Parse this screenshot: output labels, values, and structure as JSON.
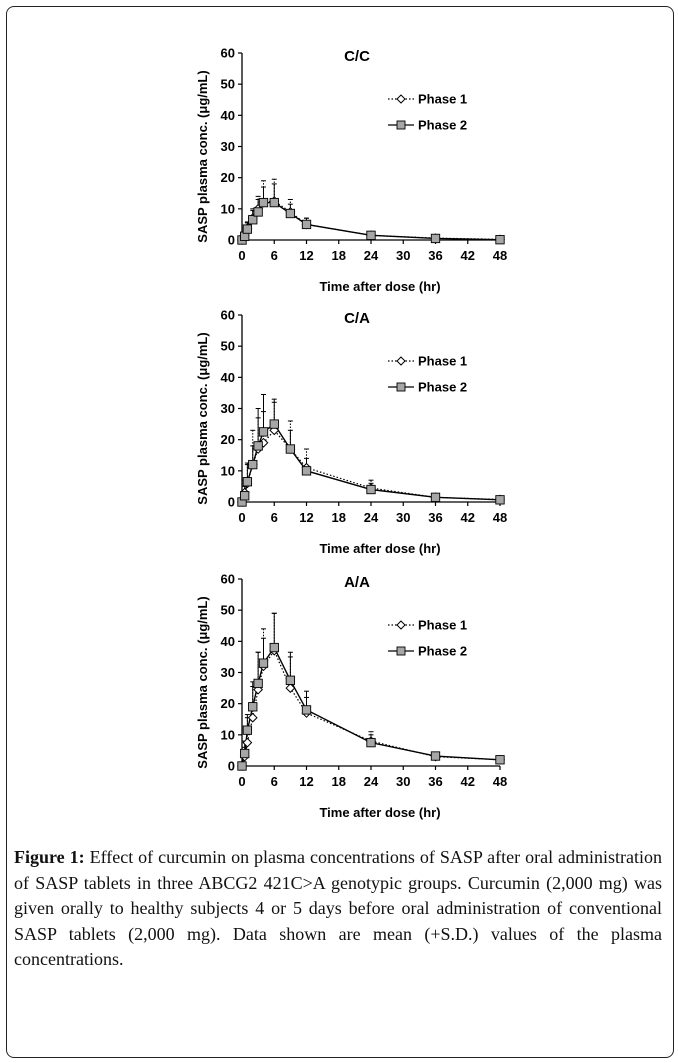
{
  "chart_data": [
    {
      "type": "line",
      "title": "C/C",
      "xlabel": "Time after dose (hr)",
      "ylabel": "SASP plasma conc. (μg/mL)",
      "xlim": [
        0,
        48
      ],
      "ylim": [
        0,
        60
      ],
      "xticks": [
        0,
        6,
        12,
        18,
        24,
        30,
        36,
        42,
        48
      ],
      "yticks": [
        0,
        10,
        20,
        30,
        40,
        50,
        60
      ],
      "legend": "top-right",
      "grid": false,
      "x": [
        0,
        0.5,
        1,
        2,
        3,
        4,
        6,
        9,
        12,
        24,
        36,
        48
      ],
      "series": [
        {
          "name": "Phase 1",
          "marker": "diamond",
          "line": "dotted",
          "values": [
            0,
            1.5,
            3.8,
            7,
            10,
            12,
            12.5,
            9,
            5,
            1.5,
            0.6,
            0.2
          ],
          "sd": [
            0,
            1,
            2,
            3,
            4,
            7,
            7,
            4,
            2,
            0.5,
            0.3,
            0.1
          ]
        },
        {
          "name": "Phase 2",
          "marker": "square",
          "line": "solid",
          "values": [
            0,
            1.2,
            3.5,
            6.5,
            9,
            12,
            12,
            8.5,
            5,
            1.5,
            0.5,
            0.1
          ],
          "sd": [
            0,
            0.8,
            2,
            3,
            4,
            5,
            6,
            3,
            2,
            0.5,
            0.3,
            0.1
          ]
        }
      ]
    },
    {
      "type": "line",
      "title": "C/A",
      "xlabel": "Time after dose (hr)",
      "ylabel": "SASP plasma conc. (μg/mL)",
      "xlim": [
        0,
        48
      ],
      "ylim": [
        0,
        60
      ],
      "xticks": [
        0,
        6,
        12,
        18,
        24,
        30,
        36,
        42,
        48
      ],
      "yticks": [
        0,
        10,
        20,
        30,
        40,
        50,
        60
      ],
      "legend": "top-right",
      "grid": false,
      "x": [
        0,
        0.5,
        1,
        2,
        3,
        4,
        6,
        9,
        12,
        24,
        36,
        48
      ],
      "series": [
        {
          "name": "Phase 1",
          "marker": "diamond",
          "line": "dotted",
          "values": [
            0,
            3,
            6,
            12,
            17,
            19,
            23,
            17,
            11,
            4.5,
            1.5,
            0.8
          ],
          "sd": [
            0,
            4,
            6,
            11,
            10,
            10,
            9,
            9,
            6,
            2.5,
            0.5,
            0.3
          ]
        },
        {
          "name": "Phase 2",
          "marker": "square",
          "line": "solid",
          "values": [
            0,
            2,
            6.5,
            12,
            18,
            22.5,
            25,
            17,
            10,
            4,
            1.5,
            0.7
          ],
          "sd": [
            0,
            3,
            6,
            6,
            12,
            12,
            8,
            6,
            4,
            2,
            0.5,
            0.3
          ]
        }
      ]
    },
    {
      "type": "line",
      "title": "A/A",
      "xlabel": "Time after dose (hr)",
      "ylabel": "SASP plasma conc. (μg/mL)",
      "xlim": [
        0,
        48
      ],
      "ylim": [
        0,
        60
      ],
      "xticks": [
        0,
        6,
        12,
        18,
        24,
        30,
        36,
        42,
        48
      ],
      "yticks": [
        0,
        10,
        20,
        30,
        40,
        50,
        60
      ],
      "legend": "top-right",
      "grid": false,
      "x": [
        0,
        0.5,
        1,
        2,
        3,
        4,
        6,
        9,
        12,
        24,
        36,
        48
      ],
      "series": [
        {
          "name": "Phase 1",
          "marker": "diamond",
          "line": "dotted",
          "values": [
            0,
            3,
            7.5,
            15.5,
            24.5,
            32,
            37,
            25,
            17,
            8,
            3,
            2
          ],
          "sd": [
            0,
            3,
            8,
            10,
            12,
            12,
            12,
            10,
            5,
            3,
            1,
            0.5
          ]
        },
        {
          "name": "Phase 2",
          "marker": "square",
          "line": "solid",
          "values": [
            0,
            4,
            11.5,
            19,
            26.5,
            33,
            38,
            27.5,
            18,
            7.5,
            3.2,
            2
          ],
          "sd": [
            0,
            4,
            5,
            8,
            10,
            8,
            11,
            9,
            6,
            2.5,
            1,
            0.5
          ]
        }
      ]
    }
  ],
  "caption": {
    "label": "Figure 1:",
    "text": " Effect of curcumin on plasma concentrations of SASP after oral administration of SASP tablets in three ABCG2 421C>A genotypic groups. Curcumin (2,000 mg) was given orally to healthy subjects 4 or 5 days before oral administration of conventional SASP tablets (2,000 mg). Data shown are mean (+S.D.) values of the plasma concentrations."
  }
}
